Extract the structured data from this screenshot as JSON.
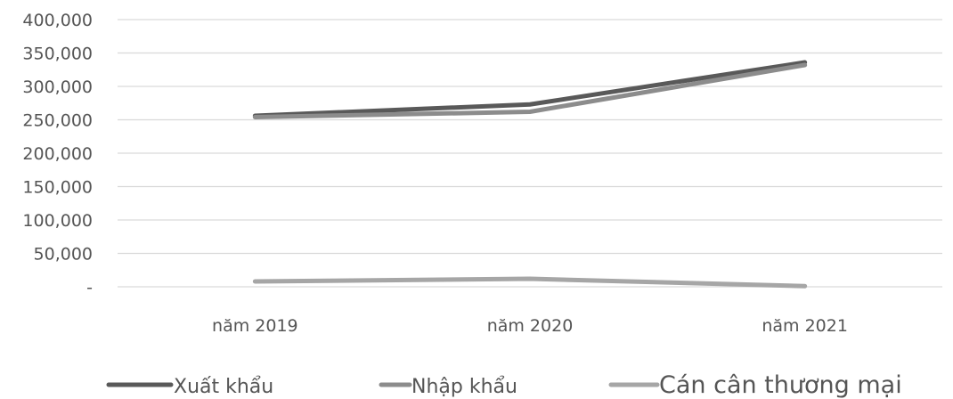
{
  "chart_data": {
    "type": "line",
    "title": "",
    "xlabel": "",
    "ylabel": "",
    "categories": [
      "năm 2019",
      "năm 2020",
      "năm 2021"
    ],
    "ylim": [
      0,
      400000
    ],
    "yticks": [
      0,
      50000,
      100000,
      150000,
      200000,
      250000,
      300000,
      350000,
      400000
    ],
    "ytick_labels": [
      "-",
      "50,000",
      "100,000",
      "150,000",
      "200,000",
      "250,000",
      "300,000",
      "350,000",
      "400,000"
    ],
    "grid": true,
    "legend_position": "bottom",
    "series": [
      {
        "name": "Xuất khẩu",
        "values": [
          256000,
          273000,
          336000
        ],
        "color": "#595959"
      },
      {
        "name": "Nhập khẩu",
        "values": [
          254000,
          262000,
          332000
        ],
        "color": "#8c8c8c"
      },
      {
        "name": "Cán cân thương mại",
        "values": [
          8000,
          12000,
          1000
        ],
        "color": "#a6a6a6"
      }
    ]
  }
}
